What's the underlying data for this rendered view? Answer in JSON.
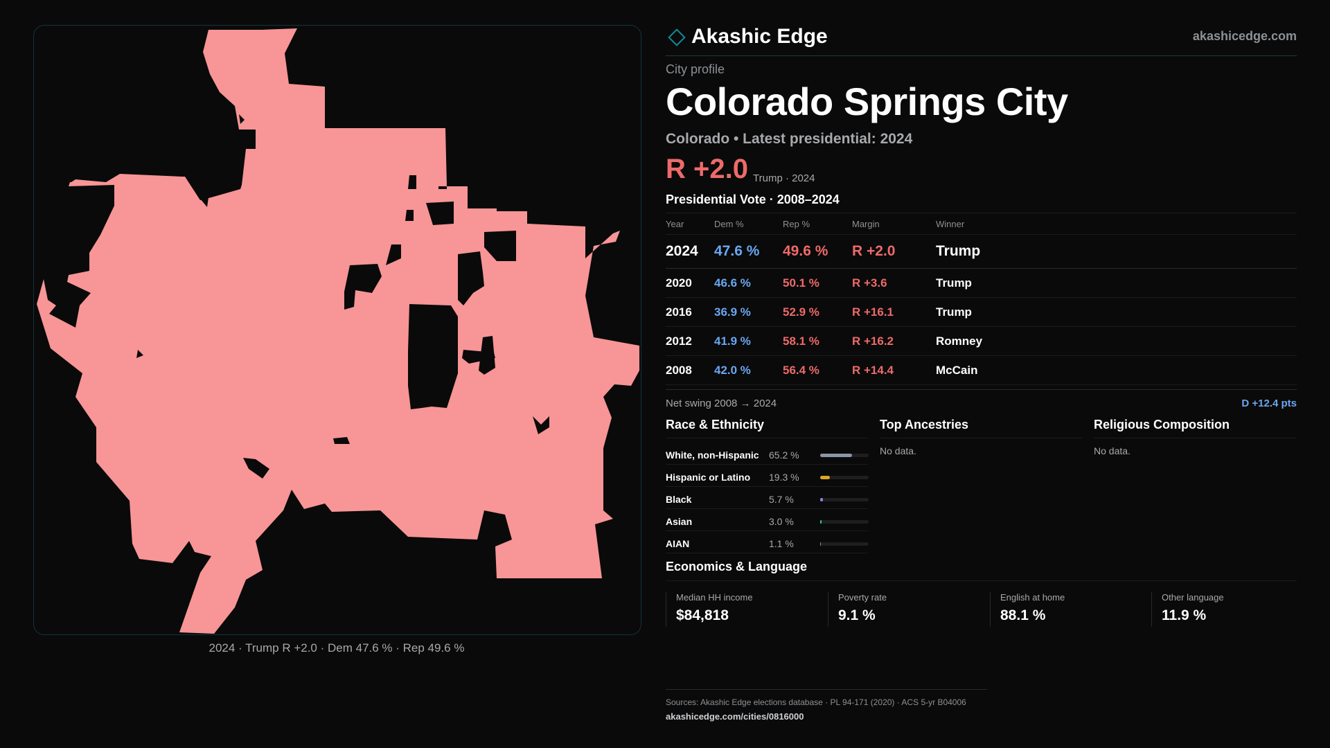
{
  "brand": {
    "name": "Akashic Edge",
    "url": "akashicedge.com",
    "accent": "#0f8a9a"
  },
  "profile": {
    "eyebrow": "City profile",
    "title": "Colorado Springs City",
    "subtitle": "Colorado • Latest presidential: 2024",
    "margin_big": "R +2.0",
    "margin_small": "Trump · 2024"
  },
  "colors": {
    "dem": "#6aa7f2",
    "rep": "#ee6a6a",
    "map_fill": "#f89596"
  },
  "map": {
    "caption": "2024 · Trump R +2.0 · Dem 47.6 % · Rep 49.6 %"
  },
  "vote": {
    "title": "Presidential Vote · 2008–2024",
    "headers": {
      "year": "Year",
      "dem": "Dem %",
      "rep": "Rep %",
      "margin": "Margin",
      "winner": "Winner"
    },
    "rows": [
      {
        "year": "2024",
        "dem": "47.6 %",
        "rep": "49.6 %",
        "margin": "R +2.0",
        "winner": "Trump"
      },
      {
        "year": "2020",
        "dem": "46.6 %",
        "rep": "50.1 %",
        "margin": "R +3.6",
        "winner": "Trump"
      },
      {
        "year": "2016",
        "dem": "36.9 %",
        "rep": "52.9 %",
        "margin": "R +16.1",
        "winner": "Trump"
      },
      {
        "year": "2012",
        "dem": "41.9 %",
        "rep": "58.1 %",
        "margin": "R +16.2",
        "winner": "Romney"
      },
      {
        "year": "2008",
        "dem": "42.0 %",
        "rep": "56.4 %",
        "margin": "R +14.4",
        "winner": "McCain"
      }
    ],
    "swing_label": "Net swing 2008 → 2024",
    "swing_value": "D +12.4 pts"
  },
  "race": {
    "title": "Race & Ethnicity",
    "rows": [
      {
        "label": "White, non-Hispanic",
        "pct": "65.2 %",
        "value": 65.2,
        "color": "#8b95a6"
      },
      {
        "label": "Hispanic or Latino",
        "pct": "19.3 %",
        "value": 19.3,
        "color": "#e0a526"
      },
      {
        "label": "Black",
        "pct": "5.7 %",
        "value": 5.7,
        "color": "#8f7ee8"
      },
      {
        "label": "Asian",
        "pct": "3.0 %",
        "value": 3.0,
        "color": "#2fc79a"
      },
      {
        "label": "AIAN",
        "pct": "1.1 %",
        "value": 1.1,
        "color": "#e07a3a"
      }
    ]
  },
  "ancestries": {
    "title": "Top Ancestries",
    "empty": "No data."
  },
  "religion": {
    "title": "Religious Composition",
    "empty": "No data."
  },
  "economics": {
    "title": "Economics & Language",
    "cells": [
      {
        "label": "Median HH income",
        "value": "$84,818"
      },
      {
        "label": "Poverty rate",
        "value": "9.1 %"
      },
      {
        "label": "English at home",
        "value": "88.1 %"
      },
      {
        "label": "Other language",
        "value": "11.9 %"
      }
    ]
  },
  "sources": {
    "line": "Sources: Akashic Edge elections database · PL 94-171 (2020) · ACS 5-yr B04006",
    "url": "akashicedge.com/cities/0816000"
  }
}
